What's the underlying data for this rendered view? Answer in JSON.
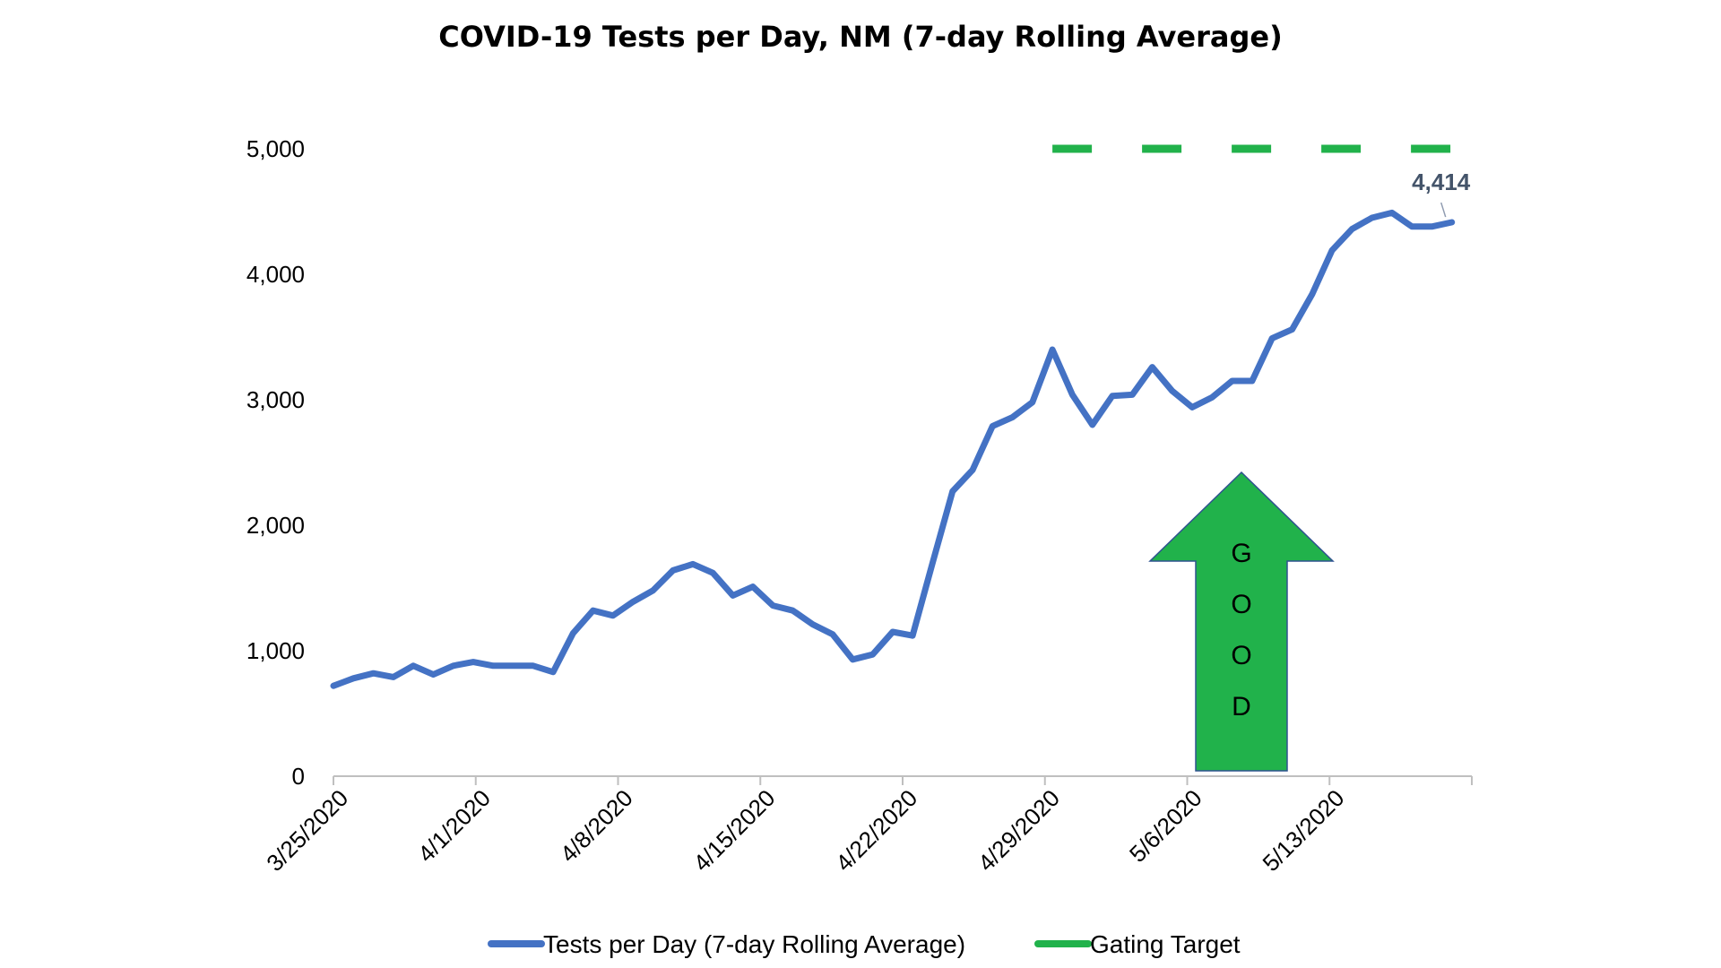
{
  "chart_data": {
    "type": "line",
    "title": "COVID-19 Tests per Day, NM (7-day Rolling Average)",
    "xlabel": "",
    "ylabel": "",
    "ylim": [
      0,
      5000
    ],
    "yticks": [
      "0",
      "1,000",
      "2,000",
      "3,000",
      "4,000",
      "5,000"
    ],
    "x_tick_labels": [
      "3/25/2020",
      "4/1/2020",
      "4/8/2020",
      "4/15/2020",
      "4/22/2020",
      "4/29/2020",
      "5/6/2020",
      "5/13/2020"
    ],
    "x_start": "2020-03-25",
    "x_end": "2020-05-21",
    "grid": false,
    "legend_position": "bottom",
    "series": [
      {
        "name": "Tests per Day (7-day Rolling Average)",
        "color": "#4472c4",
        "style": "solid",
        "x": [
          "2020-03-25",
          "2020-03-26",
          "2020-03-27",
          "2020-03-28",
          "2020-03-29",
          "2020-03-30",
          "2020-03-31",
          "2020-04-01",
          "2020-04-02",
          "2020-04-03",
          "2020-04-04",
          "2020-04-05",
          "2020-04-06",
          "2020-04-07",
          "2020-04-08",
          "2020-04-09",
          "2020-04-10",
          "2020-04-11",
          "2020-04-12",
          "2020-04-13",
          "2020-04-14",
          "2020-04-15",
          "2020-04-16",
          "2020-04-17",
          "2020-04-18",
          "2020-04-19",
          "2020-04-20",
          "2020-04-21",
          "2020-04-22",
          "2020-04-23",
          "2020-04-24",
          "2020-04-25",
          "2020-04-26",
          "2020-04-27",
          "2020-04-28",
          "2020-04-29",
          "2020-04-30",
          "2020-05-01",
          "2020-05-02",
          "2020-05-03",
          "2020-05-04",
          "2020-05-05",
          "2020-05-06",
          "2020-05-07",
          "2020-05-08",
          "2020-05-09",
          "2020-05-10",
          "2020-05-11",
          "2020-05-12",
          "2020-05-13",
          "2020-05-14",
          "2020-05-15",
          "2020-05-16",
          "2020-05-17",
          "2020-05-18",
          "2020-05-19",
          "2020-05-20"
        ],
        "values": [
          720,
          780,
          820,
          790,
          880,
          810,
          880,
          910,
          880,
          880,
          880,
          830,
          1140,
          1320,
          1280,
          1390,
          1480,
          1640,
          1690,
          1620,
          1440,
          1510,
          1360,
          1320,
          1210,
          1130,
          930,
          970,
          1150,
          1120,
          1700,
          2270,
          2440,
          2790,
          2860,
          2980,
          3400,
          3040,
          2800,
          3030,
          3040,
          3260,
          3070,
          2940,
          3020,
          3150,
          3150,
          3490,
          3560,
          3840,
          4190,
          4360,
          4450,
          4490,
          4380,
          4380,
          4414
        ]
      },
      {
        "name": "Gating Target",
        "color": "#21b24b",
        "style": "dashed",
        "x": [
          "2020-04-30",
          "2020-05-21"
        ],
        "values": [
          5000,
          5000
        ]
      }
    ],
    "annotations": [
      {
        "text": "4,414",
        "series": "Tests per Day (7-day Rolling Average)",
        "point": "last"
      },
      {
        "text": "GOOD",
        "shape": "up-arrow",
        "color": "#21b24b"
      }
    ]
  }
}
